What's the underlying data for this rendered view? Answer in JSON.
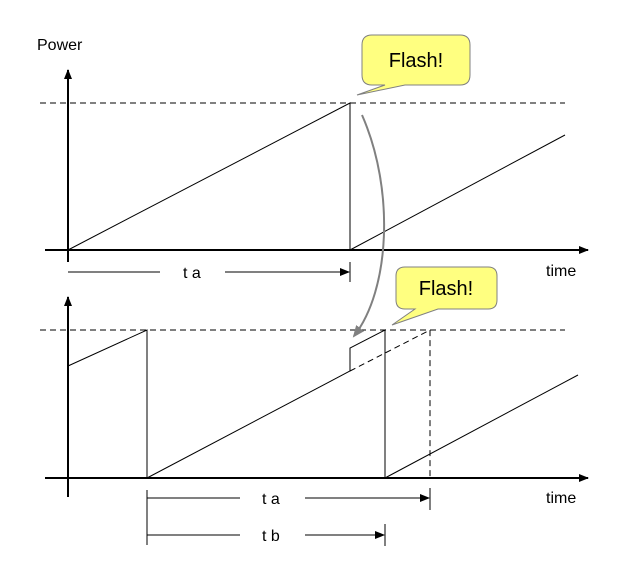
{
  "axis": {
    "y_label": "Power",
    "x_label_top": "time",
    "x_label_bottom": "time"
  },
  "intervals": {
    "top_ta": "t a",
    "bottom_ta": "t a",
    "bottom_tb": "t b"
  },
  "callouts": {
    "top": "Flash!",
    "bottom": "Flash!"
  },
  "colors": {
    "callout_fill": "#ffff80",
    "callout_stroke": "#808080",
    "curve_arrow": "#808080"
  }
}
